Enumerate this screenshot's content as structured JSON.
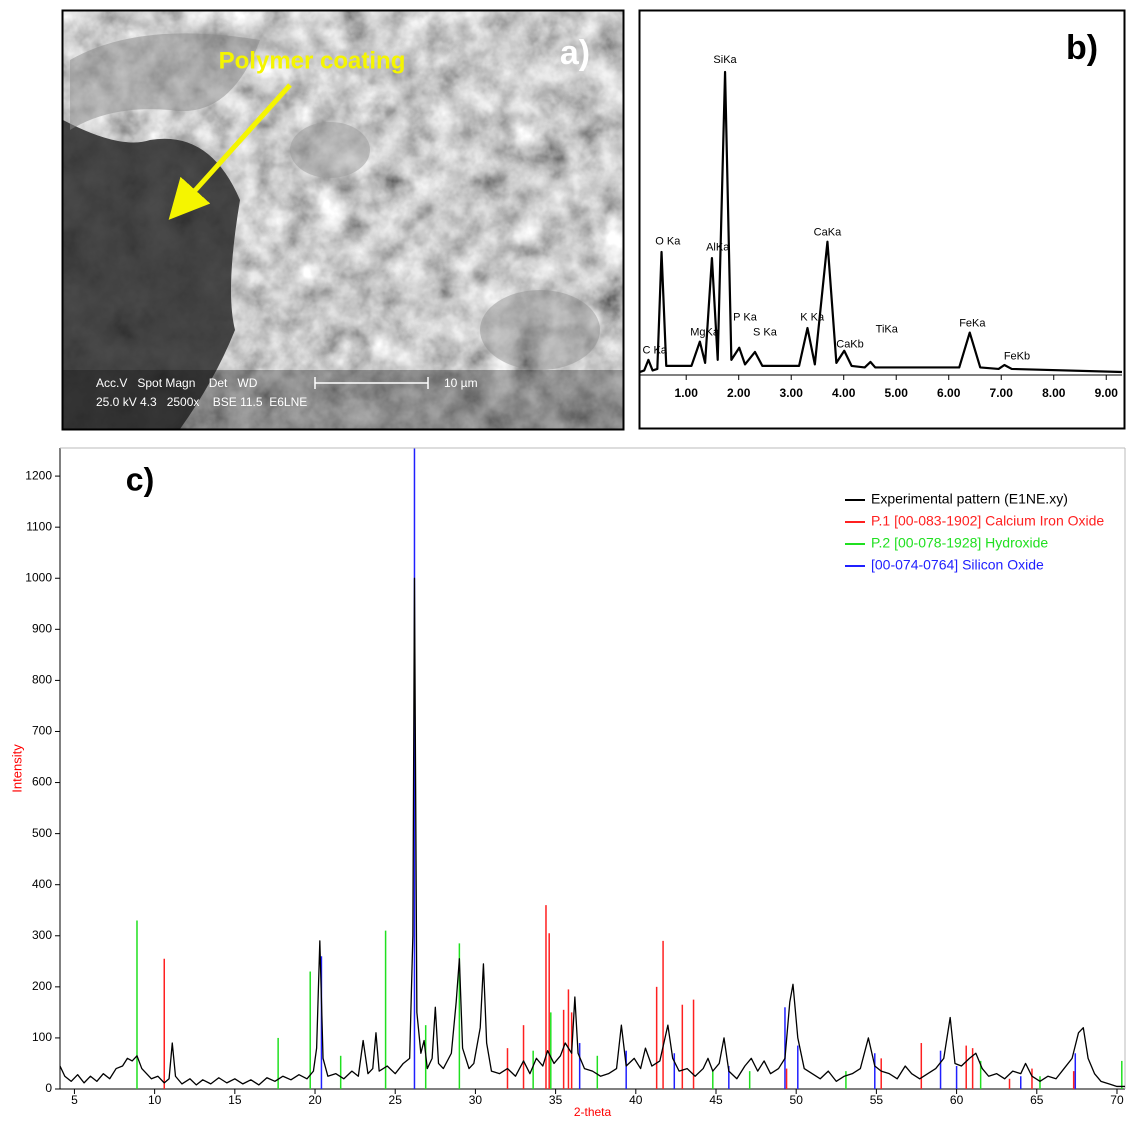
{
  "panel_a": {
    "label": "a)",
    "annotation": "Polymer coating",
    "info_header": "Acc.V   Spot Magn    Det   WD",
    "info_values": "25.0 kV 4.3   2500x    BSE 11.5  E6LNE",
    "scale_bar": "10 µm"
  },
  "chart_data": [
    {
      "type": "line",
      "label": "b)",
      "color": "#000000",
      "xlim": [
        0.12,
        9.3
      ],
      "ylim": [
        0,
        100
      ],
      "xticks": [
        {
          "value": 1,
          "label": "1.00"
        },
        {
          "value": 2,
          "label": "2.00"
        },
        {
          "value": 3,
          "label": "3.00"
        },
        {
          "value": 4,
          "label": "4.00"
        },
        {
          "value": 5,
          "label": "5.00"
        },
        {
          "value": 6,
          "label": "6.00"
        },
        {
          "value": 7,
          "label": "7.00"
        },
        {
          "value": 8,
          "label": "8.00"
        },
        {
          "value": 9,
          "label": "9.00"
        }
      ],
      "x": [
        0.12,
        0.2,
        0.28,
        0.36,
        0.45,
        0.53,
        0.62,
        1.1,
        1.26,
        1.36,
        1.49,
        1.6,
        1.74,
        1.86,
        2.01,
        2.12,
        2.31,
        2.45,
        3.15,
        3.31,
        3.45,
        3.69,
        3.86,
        4.01,
        4.15,
        4.4,
        4.51,
        4.6,
        6.2,
        6.4,
        6.6,
        6.95,
        7.06,
        7.2,
        9.3
      ],
      "values": [
        1,
        1.5,
        5,
        1.5,
        2,
        40.6,
        3,
        3,
        11,
        4,
        38.6,
        5,
        100,
        5,
        9,
        3.5,
        7.6,
        3,
        3,
        15.5,
        3.5,
        44,
        4,
        8,
        3,
        2.5,
        4.3,
        2.5,
        2.5,
        14,
        2.5,
        2,
        3.3,
        2,
        1
      ],
      "annotations": [
        {
          "text": "C Ka",
          "x": 0.4,
          "y": 8
        },
        {
          "text": "O Ka",
          "x": 0.65,
          "y": 44
        },
        {
          "text": "MgKa",
          "x": 1.35,
          "y": 14
        },
        {
          "text": "AlKa",
          "x": 1.6,
          "y": 42
        },
        {
          "text": "SiKa",
          "x": 1.74,
          "y": 104
        },
        {
          "text": "P Ka",
          "x": 2.12,
          "y": 19
        },
        {
          "text": "S Ka",
          "x": 2.5,
          "y": 14
        },
        {
          "text": "K Ka",
          "x": 3.4,
          "y": 19
        },
        {
          "text": "CaKa",
          "x": 3.69,
          "y": 47
        },
        {
          "text": "CaKb",
          "x": 4.12,
          "y": 10
        },
        {
          "text": "TiKa",
          "x": 4.82,
          "y": 15
        },
        {
          "text": "FeKa",
          "x": 6.45,
          "y": 17
        },
        {
          "text": "FeKb",
          "x": 7.3,
          "y": 6
        }
      ]
    },
    {
      "type": "line",
      "label": "c)",
      "xlabel": "2-theta",
      "ylabel": "Intensity",
      "axis_label_color": "#ff0000",
      "xlim": [
        4.1,
        70.5
      ],
      "ylim": [
        0,
        1255
      ],
      "xticks": [
        5,
        10,
        15,
        20,
        25,
        30,
        35,
        40,
        45,
        50,
        55,
        60,
        65,
        70
      ],
      "yticks": [
        0,
        100,
        200,
        300,
        400,
        500,
        600,
        700,
        800,
        900,
        1000,
        1100,
        1200
      ],
      "series": [
        {
          "name": "[00-074-0764]  Silicon Oxide",
          "color": "#2020ff",
          "mark": "stems",
          "x": [
            20.4,
            26.2,
            36.5,
            39.4,
            42.4,
            45.8,
            49.3,
            50.1,
            54.9,
            59.0,
            60.0,
            64.0,
            67.4
          ],
          "values": [
            260,
            1254,
            90,
            75,
            70,
            45,
            160,
            85,
            70,
            75,
            45,
            25,
            70
          ]
        },
        {
          "name": "P.1 [00-083-1902]  Calcium Iron Oxide",
          "color": "#ff2020",
          "mark": "stems",
          "x": [
            10.6,
            32.0,
            33.0,
            34.4,
            34.6,
            35.5,
            35.8,
            36.0,
            41.3,
            41.7,
            42.9,
            43.6,
            49.4,
            55.3,
            57.8,
            60.6,
            61.0,
            63.3,
            64.7,
            67.3
          ],
          "values": [
            255,
            80,
            125,
            360,
            305,
            155,
            195,
            150,
            200,
            290,
            165,
            175,
            40,
            60,
            90,
            85,
            80,
            20,
            40,
            35
          ]
        },
        {
          "name": "P.2 [00-078-1928]  Hydroxide",
          "color": "#20e020",
          "mark": "stems",
          "x": [
            8.9,
            17.7,
            19.7,
            21.6,
            24.4,
            26.9,
            29.0,
            33.6,
            34.7,
            37.6,
            44.8,
            47.1,
            53.1,
            61.5,
            65.2,
            70.3
          ],
          "values": [
            330,
            100,
            230,
            65,
            310,
            125,
            285,
            75,
            150,
            65,
            35,
            35,
            35,
            55,
            25,
            55
          ]
        },
        {
          "name": "Experimental pattern (E1NE.xy)",
          "color": "#000000",
          "mark": "line",
          "x": [
            4.1,
            4.4,
            4.8,
            5.2,
            5.6,
            6.0,
            6.4,
            6.8,
            7.2,
            7.6,
            8.0,
            8.3,
            8.6,
            8.9,
            9.2,
            9.5,
            9.8,
            10.2,
            10.6,
            10.9,
            11.1,
            11.3,
            11.7,
            12.2,
            12.6,
            13.0,
            13.5,
            14.0,
            14.5,
            15.0,
            15.5,
            16.0,
            16.5,
            17.0,
            17.5,
            18.0,
            18.5,
            19.0,
            19.5,
            19.9,
            20.1,
            20.3,
            20.5,
            20.8,
            21.3,
            21.8,
            22.3,
            22.7,
            23.0,
            23.3,
            23.6,
            23.8,
            24.0,
            24.5,
            25.0,
            25.5,
            25.9,
            26.1,
            26.2,
            26.35,
            26.6,
            26.8,
            27.0,
            27.3,
            27.5,
            27.7,
            28.0,
            28.5,
            28.8,
            29.0,
            29.2,
            29.6,
            29.9,
            30.3,
            30.5,
            30.7,
            31.0,
            31.5,
            32.0,
            32.5,
            33.0,
            33.4,
            33.8,
            34.2,
            34.5,
            34.9,
            35.3,
            35.6,
            36.0,
            36.2,
            36.4,
            36.8,
            37.3,
            37.8,
            38.3,
            38.8,
            39.1,
            39.4,
            39.9,
            40.3,
            40.6,
            41.0,
            41.5,
            42.0,
            42.3,
            42.7,
            43.2,
            43.7,
            44.2,
            44.5,
            44.8,
            45.2,
            45.5,
            45.8,
            46.3,
            46.8,
            47.2,
            47.6,
            48.0,
            48.4,
            48.9,
            49.3,
            49.6,
            49.8,
            50.1,
            50.5,
            51.0,
            51.5,
            52.0,
            52.5,
            53.0,
            53.5,
            54.0,
            54.5,
            54.9,
            55.3,
            55.8,
            56.3,
            56.8,
            57.2,
            57.7,
            58.2,
            58.7,
            59.2,
            59.6,
            59.9,
            60.3,
            60.8,
            61.2,
            61.6,
            62.0,
            62.5,
            63.0,
            63.5,
            64.0,
            64.3,
            64.7,
            65.2,
            65.7,
            66.2,
            66.7,
            67.2,
            67.6,
            67.9,
            68.2,
            68.6,
            69.0,
            69.5,
            70.0,
            70.5
          ],
          "values": [
            45,
            25,
            15,
            28,
            12,
            25,
            15,
            30,
            20,
            40,
            45,
            60,
            55,
            65,
            40,
            30,
            20,
            25,
            12,
            20,
            90,
            25,
            10,
            20,
            8,
            18,
            10,
            22,
            12,
            20,
            10,
            18,
            8,
            22,
            15,
            25,
            18,
            28,
            20,
            35,
            80,
            290,
            60,
            25,
            30,
            20,
            35,
            25,
            95,
            30,
            40,
            110,
            35,
            45,
            30,
            50,
            60,
            300,
            1000,
            150,
            70,
            95,
            40,
            60,
            160,
            50,
            40,
            70,
            170,
            255,
            80,
            40,
            50,
            120,
            245,
            90,
            35,
            30,
            40,
            25,
            55,
            30,
            60,
            45,
            75,
            50,
            65,
            90,
            70,
            180,
            70,
            40,
            35,
            25,
            30,
            40,
            125,
            45,
            60,
            40,
            80,
            45,
            55,
            125,
            60,
            35,
            40,
            25,
            40,
            60,
            35,
            50,
            100,
            35,
            20,
            45,
            60,
            35,
            55,
            30,
            40,
            60,
            170,
            205,
            100,
            40,
            30,
            20,
            35,
            15,
            25,
            30,
            40,
            100,
            45,
            35,
            30,
            20,
            45,
            30,
            20,
            30,
            40,
            60,
            140,
            50,
            45,
            60,
            70,
            40,
            25,
            30,
            20,
            35,
            30,
            50,
            25,
            15,
            25,
            20,
            40,
            60,
            110,
            120,
            60,
            30,
            15,
            10,
            5,
            5
          ]
        }
      ],
      "legend": [
        "chart_data.1.series.3",
        "chart_data.1.series.1",
        "chart_data.1.series.2",
        "chart_data.1.series.0"
      ]
    }
  ]
}
